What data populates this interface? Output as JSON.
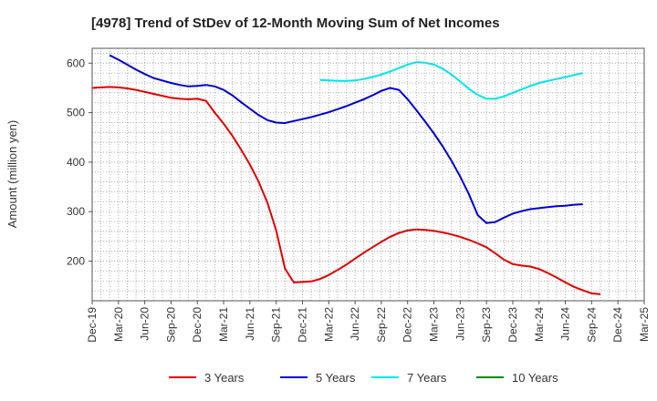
{
  "chart_data": {
    "type": "line",
    "title": "[4978]  Trend of StDev of 12-Month Moving Sum of Net Incomes",
    "xlabel": "",
    "ylabel": "Amount (million yen)",
    "ylim": [
      120,
      630
    ],
    "yticks": [
      200,
      300,
      400,
      500,
      600
    ],
    "xticks": [
      "Dec-19",
      "Mar-20",
      "Jun-20",
      "Sep-20",
      "Dec-20",
      "Mar-21",
      "Jun-21",
      "Sep-21",
      "Dec-21",
      "Mar-22",
      "Jun-22",
      "Sep-22",
      "Dec-22",
      "Mar-23",
      "Jun-23",
      "Sep-23",
      "Dec-23",
      "Mar-24",
      "Jun-24",
      "Sep-24",
      "Dec-24",
      "Mar-25"
    ],
    "grid": true,
    "legend_position": "bottom",
    "series": [
      {
        "name": "3 Years",
        "color": "#dd0000",
        "start_index": 0,
        "values": [
          550,
          551,
          552,
          551,
          549,
          546,
          542,
          538,
          534,
          530,
          528,
          527,
          528,
          524,
          500,
          478,
          453,
          425,
          395,
          360,
          318,
          262,
          185,
          157,
          158,
          159,
          164,
          172,
          182,
          193,
          205,
          217,
          228,
          239,
          249,
          257,
          262,
          264,
          263,
          261,
          258,
          254,
          249,
          243,
          236,
          228,
          216,
          203,
          194,
          191,
          189,
          184,
          176,
          167,
          157,
          148,
          141,
          135,
          133
        ]
      },
      {
        "name": "5 Years",
        "color": "#0000cc",
        "start_index": 2,
        "values": [
          616,
          607,
          597,
          587,
          578,
          570,
          565,
          560,
          556,
          553,
          554,
          556,
          553,
          546,
          535,
          521,
          508,
          495,
          485,
          480,
          479,
          483,
          487,
          491,
          496,
          501,
          507,
          513,
          520,
          527,
          535,
          544,
          550,
          546,
          527,
          505,
          482,
          458,
          432,
          403,
          371,
          335,
          293,
          277,
          279,
          288,
          296,
          301,
          305,
          307,
          309,
          311,
          312,
          314,
          315
        ]
      },
      {
        "name": "7 Years",
        "color": "#00e5e5",
        "start_index": 26,
        "values": [
          566,
          565,
          564,
          564,
          565,
          568,
          572,
          577,
          583,
          590,
          597,
          602,
          601,
          597,
          589,
          577,
          563,
          548,
          536,
          528,
          528,
          533,
          540,
          547,
          554,
          560,
          564,
          568,
          572,
          576,
          580
        ]
      },
      {
        "name": "10 Years",
        "color": "#008800",
        "start_index": 0,
        "values": []
      }
    ]
  }
}
